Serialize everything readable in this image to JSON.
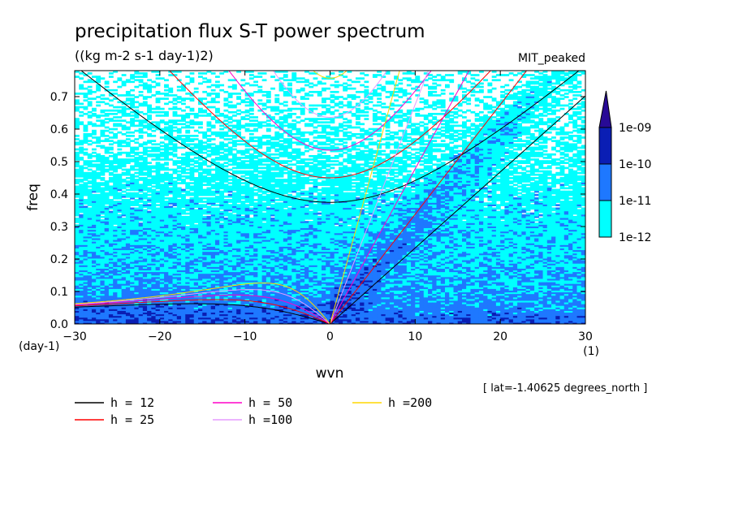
{
  "chart_data": {
    "type": "heatmap",
    "title": "precipitation flux S-T power spectrum",
    "subtitle": "((kg m-2 s-1 day-1)2)",
    "model_label": "MIT_peaked",
    "xlabel": "wvn",
    "ylabel": "freq",
    "x_units": "(1)",
    "y_units": "(day-1)",
    "xlim": [
      -30,
      30
    ],
    "ylim": [
      0,
      0.78
    ],
    "x_ticks": [
      "−30",
      "−20",
      "−10",
      "0",
      "10",
      "20",
      "30"
    ],
    "y_ticks": [
      "0.0",
      "0.1",
      "0.2",
      "0.3",
      "0.4",
      "0.5",
      "0.6",
      "0.7"
    ],
    "colorbar": {
      "levels": [
        "1e-12",
        "1e-11",
        "1e-10",
        "1e-09"
      ],
      "colors": [
        "#ffffff",
        "#00ffff",
        "#1e78ff",
        "#0a1eb4",
        "#280a96"
      ]
    },
    "dispersion_curves": [
      {
        "label": "h = 12",
        "h": 12,
        "color": "#000000"
      },
      {
        "label": "h = 25",
        "h": 25,
        "color": "#ff0000"
      },
      {
        "label": "h = 50",
        "h": 50,
        "color": "#ff00c8"
      },
      {
        "label": "h =100",
        "h": 100,
        "color": "#e69bff"
      },
      {
        "label": "h =200",
        "h": 200,
        "color": "#ffd700"
      }
    ],
    "annotation": "[ lat=-1.40625 degrees_north ]"
  }
}
